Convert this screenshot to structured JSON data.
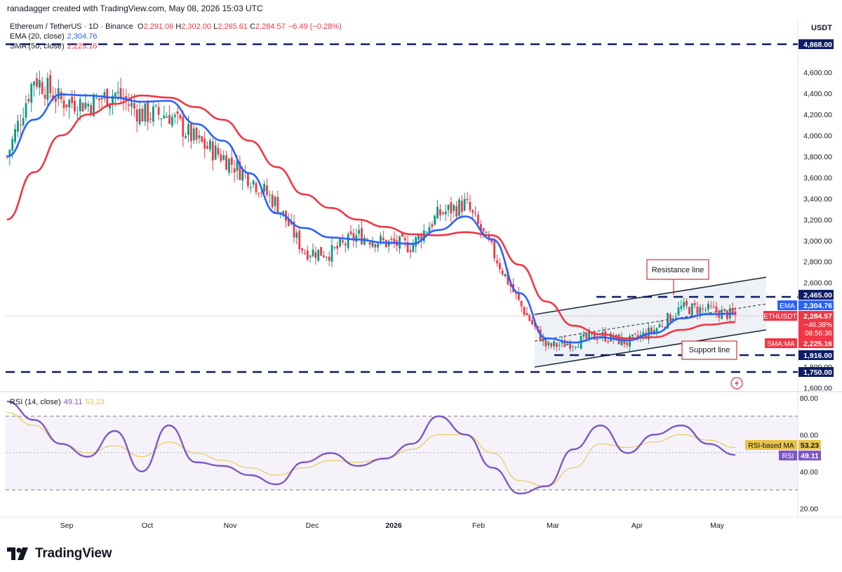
{
  "header": {
    "credit": "ranadagger created with TradingView.com, May 08, 2026 15:03 UTC",
    "symbol": "Ethereum / TetherUS · 1D · Binance",
    "ohlc_o_label": "O",
    "ohlc_o": "2,291.06",
    "ohlc_h_label": "H",
    "ohlc_h": "2,302.00",
    "ohlc_l_label": "L",
    "ohlc_l": "2,265.61",
    "ohlc_c_label": "C",
    "ohlc_c": "2,284.57",
    "change": "−6.49 (−0.28%)",
    "ema_label": "EMA (20, close)",
    "ema_value": "2,304.76",
    "sma_label": "SMA (50, close)",
    "sma_value": "2,225.16"
  },
  "colors": {
    "up": "#089981",
    "down": "#f23645",
    "ema": "#2962ff",
    "sma": "#f23645",
    "rsi": "#7e57c2",
    "rsi_ma": "#e8c547",
    "dash": "#0d1d63",
    "channel": "#1c2a3a",
    "text": "#131722",
    "axis_text": "#131722",
    "grid": "#f0f3fa"
  },
  "price_axis": {
    "unit": "USDT",
    "ticks": [
      "4,600.00",
      "4,400.00",
      "4,200.00",
      "4,000.00",
      "3,800.00",
      "3,600.00",
      "3,400.00",
      "3,200.00",
      "3,000.00",
      "2,800.00",
      "2,600.00",
      "1,800.00",
      "1,600.00"
    ]
  },
  "rsi_axis": {
    "ticks": [
      "80.00",
      "60.00",
      "40.00",
      "20.00"
    ]
  },
  "time_axis": {
    "labels": [
      "Sep",
      "Oct",
      "Nov",
      "Dec",
      "2026",
      "Feb",
      "Mar",
      "Apr",
      "May"
    ]
  },
  "price_tags": {
    "top_level": "4,868.00",
    "resistance_level": "2,465.00",
    "ema_label": "EMA",
    "ema_value": "2,304.76",
    "pair_label": "ETHUSDT",
    "pair_value": "2,284.57",
    "pair_change": "−46.38%",
    "pair_timer": "08:56:36",
    "sma_label": "SMA:MA",
    "sma_value": "2,225.16",
    "support_level": "1,916.00",
    "bottom_level": "1,750.00"
  },
  "rsi_tags": {
    "rsi_ma_label": "RSI-based MA",
    "rsi_ma_value": "53.23",
    "rsi_label": "RSI",
    "rsi_value": "49.11"
  },
  "rsi_legend": {
    "label": "RSI (14, close)",
    "value": "49.11",
    "ma_value": "53.23"
  },
  "annotations": {
    "resistance": "Resistance line",
    "support": "Support line"
  },
  "footer": {
    "brand": "TradingView"
  },
  "chart_data": {
    "type": "line",
    "title": "Ethereum / TetherUS · 1D · Binance",
    "price_range": [
      1600,
      4950
    ],
    "rsi_range": [
      15,
      83
    ],
    "x": [
      "Aug 10",
      "Aug 20",
      "Sep 1",
      "Sep 10",
      "Sep 20",
      "Oct 1",
      "Oct 10",
      "Oct 20",
      "Nov 1",
      "Nov 10",
      "Nov 20",
      "Dec 1",
      "Dec 10",
      "Dec 20",
      "Jan 1",
      "Jan 10",
      "Jan 20",
      "Feb 1",
      "Feb 10",
      "Feb 20",
      "Mar 1",
      "Mar 10",
      "Mar 20",
      "Apr 1",
      "Apr 10",
      "Apr 20",
      "May 1",
      "May 8"
    ],
    "series": [
      {
        "name": "ETHUSDT",
        "values": [
          3800,
          4550,
          4330,
          4300,
          4400,
          4200,
          4200,
          3950,
          3800,
          3600,
          3350,
          2900,
          2880,
          3050,
          2980,
          2950,
          3250,
          3350,
          2900,
          2400,
          1990,
          2030,
          2100,
          2030,
          2150,
          2360,
          2340,
          2285
        ]
      },
      {
        "name": "EMA",
        "values": [
          3800,
          4150,
          4390,
          4380,
          4360,
          4320,
          4330,
          4110,
          3950,
          3640,
          3260,
          3120,
          3030,
          3010,
          2980,
          2970,
          3100,
          3230,
          3010,
          2500,
          2070,
          2030,
          2080,
          2050,
          2120,
          2260,
          2300,
          2305
        ]
      },
      {
        "name": "SMA",
        "values": [
          3200,
          3650,
          4000,
          4200,
          4300,
          4380,
          4360,
          4270,
          4150,
          3950,
          3700,
          3440,
          3310,
          3200,
          3130,
          3060,
          3050,
          3080,
          3050,
          2770,
          2420,
          2190,
          2110,
          2070,
          2080,
          2150,
          2200,
          2225
        ]
      },
      {
        "name": "RSI",
        "values": [
          78,
          68,
          55,
          48,
          62,
          40,
          65,
          45,
          43,
          38,
          33,
          45,
          50,
          43,
          47,
          55,
          70,
          60,
          42,
          28,
          32,
          52,
          65,
          50,
          60,
          65,
          55,
          49
        ]
      },
      {
        "name": "RSI-based MA",
        "values": [
          72,
          65,
          55,
          50,
          54,
          48,
          56,
          50,
          46,
          42,
          38,
          42,
          46,
          45,
          47,
          52,
          60,
          60,
          50,
          35,
          32,
          42,
          55,
          53,
          56,
          60,
          57,
          53
        ]
      }
    ],
    "levels": {
      "top": 4868,
      "resistance": 2465,
      "support": 1916,
      "bottom": 1750
    },
    "rsi_bands": [
      30,
      50,
      70
    ]
  }
}
